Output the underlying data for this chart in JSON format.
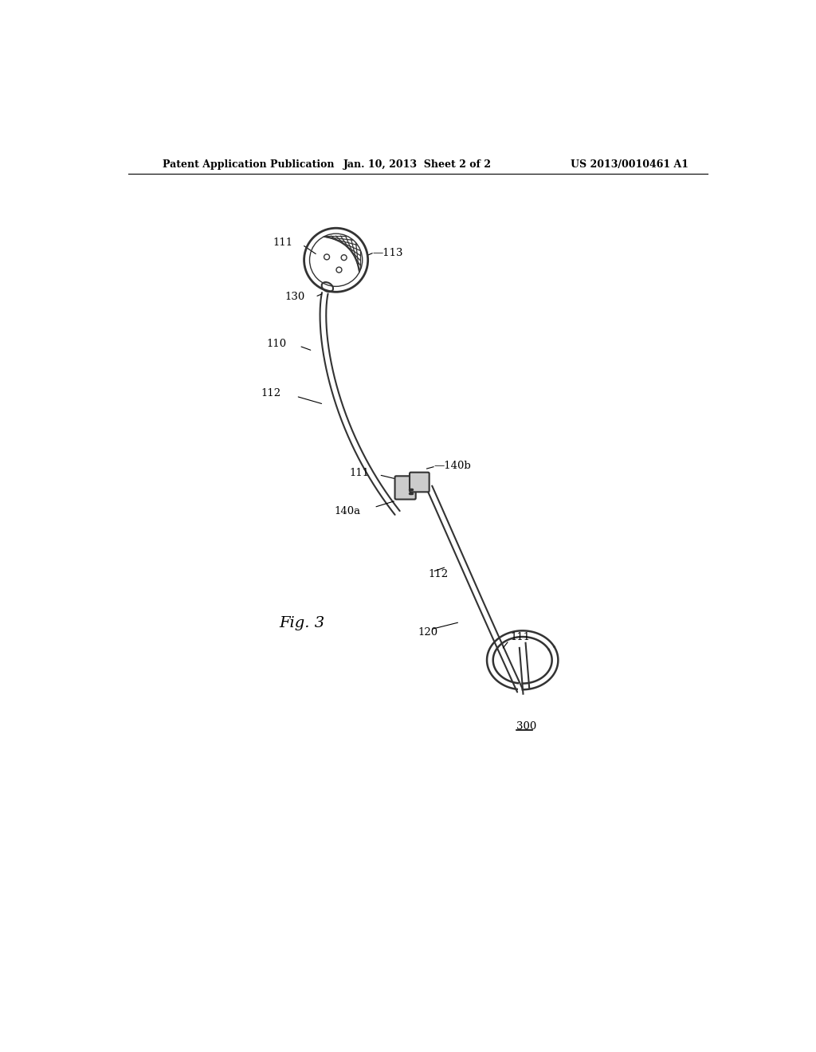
{
  "header_left": "Patent Application Publication",
  "header_mid": "Jan. 10, 2013  Sheet 2 of 2",
  "header_right": "US 2013/0010461 A1",
  "fig_label": "Fig. 3",
  "bg_color": "#ffffff",
  "line_color": "#333333"
}
